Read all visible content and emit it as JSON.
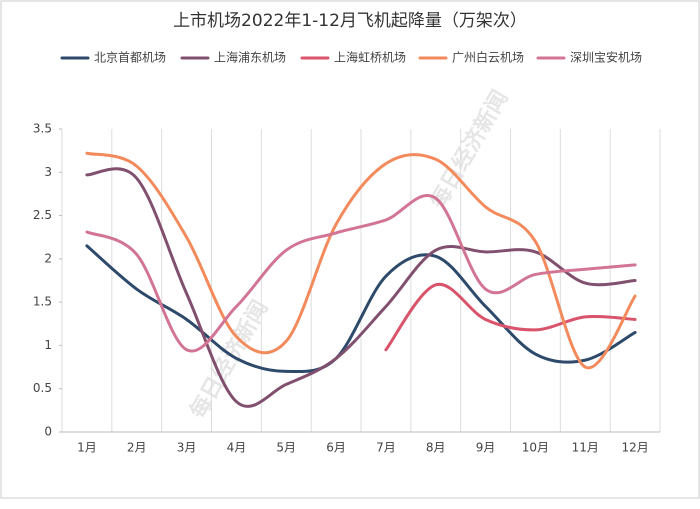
{
  "chart_data": {
    "type": "line",
    "title": "上市机场2022年1-12月飞机起降量（万架次）",
    "categories": [
      "1月",
      "2月",
      "3月",
      "4月",
      "5月",
      "6月",
      "7月",
      "8月",
      "9月",
      "10月",
      "11月",
      "12月"
    ],
    "series": [
      {
        "name": "北京首都机场",
        "color": "#2e4a6b",
        "values": [
          2.15,
          1.65,
          1.3,
          0.85,
          0.7,
          0.85,
          1.8,
          2.03,
          1.45,
          0.9,
          0.83,
          1.15
        ]
      },
      {
        "name": "上海浦东机场",
        "color": "#80506e",
        "values": [
          2.97,
          2.93,
          1.6,
          0.35,
          0.55,
          0.85,
          1.45,
          2.1,
          2.08,
          2.08,
          1.72,
          1.75
        ]
      },
      {
        "name": "上海虹桥机场",
        "color": "#d9536a",
        "values": [
          null,
          null,
          null,
          null,
          null,
          null,
          0.95,
          1.7,
          1.3,
          1.18,
          1.33,
          1.3
        ]
      },
      {
        "name": "广州白云机场",
        "color": "#f28a5c",
        "values": [
          3.22,
          3.07,
          2.25,
          1.1,
          1.05,
          2.4,
          3.1,
          3.15,
          2.6,
          2.2,
          0.75,
          1.57
        ]
      },
      {
        "name": "深圳宝安机场",
        "color": "#d27595",
        "values": [
          2.31,
          2.05,
          0.95,
          1.45,
          2.1,
          2.3,
          2.45,
          2.7,
          1.65,
          1.82,
          1.88,
          1.93
        ]
      }
    ],
    "ylim": [
      0,
      3.5
    ],
    "yticks": [
      0,
      0.5,
      1,
      1.5,
      2,
      2.5,
      3,
      3.5
    ],
    "grid": true,
    "legend": "top",
    "watermark": "每日经济新闻"
  }
}
